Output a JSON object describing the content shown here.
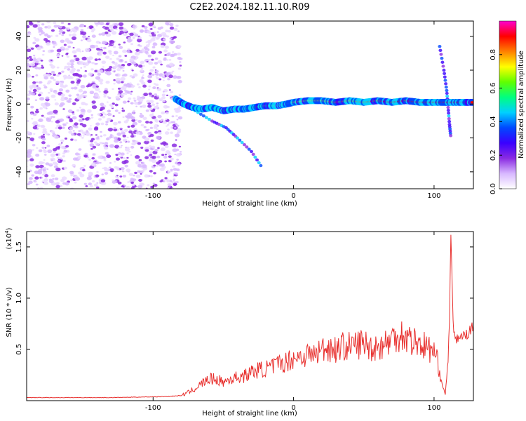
{
  "figure": {
    "title": "C2E2.2024.182.11.10.R09"
  },
  "colors": {
    "signal_line": "#e8302e",
    "axes": "#000000",
    "background": "#ffffff"
  },
  "chart_data": [
    {
      "type": "heatmap",
      "xlabel": "Height of straight line (km)",
      "ylabel": "Frequency (Hz)",
      "xlim": [
        -190,
        128
      ],
      "ylim": [
        -50,
        49
      ],
      "xticks": [
        -100,
        0,
        100
      ],
      "yticks": [
        -40,
        -20,
        0,
        20,
        40
      ],
      "colorbar": {
        "label": "Normalized spectral amplitude",
        "range": [
          0,
          1
        ],
        "ticks": [
          0.0,
          0.2,
          0.4,
          0.6,
          0.8
        ],
        "colormap": "rainbow",
        "stops": [
          "#ffffff",
          "#d8b8ff",
          "#8a2be2",
          "#3a00ff",
          "#0048ff",
          "#00d0ff",
          "#00ff80",
          "#60ff00",
          "#ffff00",
          "#ff8000",
          "#ff0000",
          "#ff00d0"
        ]
      },
      "noise_region": {
        "x_range": [
          -190,
          -80
        ],
        "y_range": [
          -50,
          49
        ]
      },
      "main_track": [
        {
          "x": -84,
          "y": 3
        },
        {
          "x": -78,
          "y": 0
        },
        {
          "x": -72,
          "y": -2
        },
        {
          "x": -65,
          "y": -3
        },
        {
          "x": -58,
          "y": -2
        },
        {
          "x": -50,
          "y": -4
        },
        {
          "x": -42,
          "y": -3
        },
        {
          "x": -35,
          "y": -3
        },
        {
          "x": -28,
          "y": -2
        },
        {
          "x": -20,
          "y": -1
        },
        {
          "x": -12,
          "y": -1
        },
        {
          "x": -5,
          "y": 0
        },
        {
          "x": 0,
          "y": 1
        },
        {
          "x": 10,
          "y": 2
        },
        {
          "x": 20,
          "y": 2
        },
        {
          "x": 30,
          "y": 1
        },
        {
          "x": 40,
          "y": 2
        },
        {
          "x": 50,
          "y": 1
        },
        {
          "x": 60,
          "y": 2
        },
        {
          "x": 70,
          "y": 1
        },
        {
          "x": 80,
          "y": 2
        },
        {
          "x": 90,
          "y": 1
        },
        {
          "x": 100,
          "y": 1
        },
        {
          "x": 110,
          "y": 1
        },
        {
          "x": 120,
          "y": 1
        },
        {
          "x": 128,
          "y": 1
        }
      ],
      "branches": [
        {
          "points": [
            {
              "x": -84,
              "y": 2
            },
            {
              "x": -70,
              "y": -4
            },
            {
              "x": -58,
              "y": -10
            },
            {
              "x": -48,
              "y": -14
            },
            {
              "x": -40,
              "y": -20
            },
            {
              "x": -30,
              "y": -28
            },
            {
              "x": -22,
              "y": -38
            }
          ]
        },
        {
          "points": [
            {
              "x": 104,
              "y": 34
            },
            {
              "x": 107,
              "y": 20
            },
            {
              "x": 109,
              "y": 8
            },
            {
              "x": 110,
              "y": -2
            },
            {
              "x": 111,
              "y": -12
            },
            {
              "x": 112,
              "y": -20
            }
          ]
        }
      ]
    },
    {
      "type": "line",
      "xlabel": "Height of straight line (km)",
      "ylabel": "SNR (10 * v/v)",
      "y_exponent_label": "(x10",
      "y_exponent_sup": "4",
      "y_exponent_close": ")",
      "xlim": [
        -190,
        128
      ],
      "ylim": [
        0,
        16500
      ],
      "xticks": [
        -100,
        0,
        100
      ],
      "yticks": [
        0.5,
        1.0,
        1.5
      ],
      "ytick_scale": 10000,
      "series": [
        {
          "x": [
            -190,
            -170,
            -150,
            -130,
            -110,
            -90,
            -80,
            -75,
            -70,
            -65,
            -60,
            -55,
            -50,
            -45,
            -40,
            -35,
            -30,
            -25,
            -20,
            -15,
            -10,
            -5,
            0,
            5,
            10,
            15,
            20,
            25,
            30,
            35,
            40,
            45,
            50,
            55,
            60,
            65,
            70,
            75,
            80,
            85,
            90,
            95,
            100,
            103,
            106,
            108,
            110,
            111,
            112,
            113,
            114,
            116,
            120,
            124,
            128
          ],
          "y": [
            300,
            300,
            300,
            300,
            350,
            400,
            500,
            800,
            1200,
            1700,
            2100,
            2100,
            1800,
            2100,
            2300,
            2400,
            2800,
            3000,
            3100,
            3300,
            3600,
            3800,
            4200,
            4300,
            4500,
            4500,
            5000,
            5200,
            5000,
            5300,
            5300,
            5500,
            5600,
            5200,
            5300,
            5500,
            6000,
            6500,
            6300,
            5800,
            5600,
            5200,
            4800,
            3500,
            1500,
            600,
            4000,
            8000,
            15500,
            10000,
            6500,
            6000,
            6300,
            6500,
            7300
          ]
        }
      ]
    }
  ]
}
